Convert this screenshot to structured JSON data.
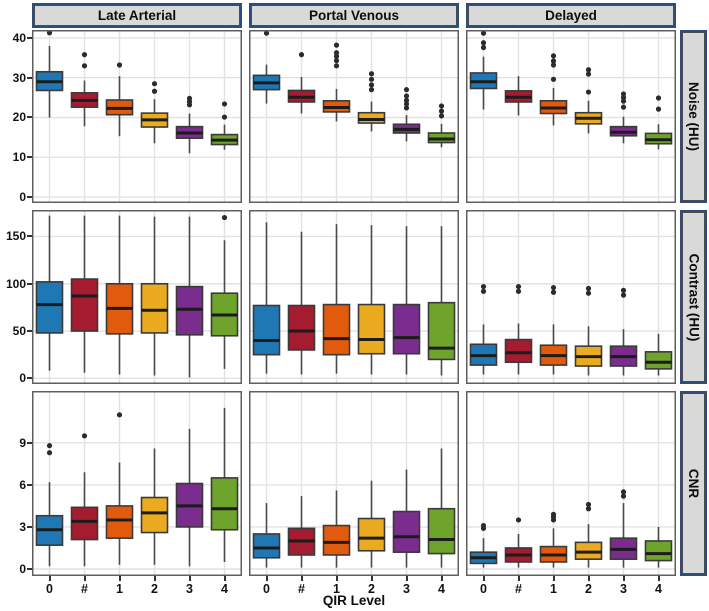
{
  "chart_data": {
    "type": "boxplot",
    "layout": "facet_grid_3x3",
    "title": "",
    "xlabel": "QIR Level",
    "categories": [
      "0",
      "#",
      "1",
      "2",
      "3",
      "4"
    ],
    "legend": "none",
    "grid": "major-only",
    "col_facets": [
      "Late Arterial",
      "Portal Venous",
      "Delayed"
    ],
    "row_facets": [
      {
        "label": "Noise (HU)",
        "ticks": [
          0,
          10,
          20,
          30,
          40
        ],
        "ylim": [
          -1.5,
          42
        ]
      },
      {
        "label": "Contrast (HU)",
        "ticks": [
          0,
          50,
          100,
          150
        ],
        "ylim": [
          -6,
          178
        ]
      },
      {
        "label": "CNR",
        "ticks": [
          0,
          3,
          6,
          9
        ],
        "ylim": [
          -0.5,
          12.7
        ]
      }
    ],
    "palette": [
      "#1F78B4",
      "#A51C30",
      "#E25A0C",
      "#EBAB21",
      "#7A2D8E",
      "#6FA42C"
    ],
    "style": {
      "panel_bg": "#ffffff",
      "grid_color": "#e2e2e2",
      "panel_border": "#5f5f5f",
      "strip_fill": "#d9d9d9",
      "strip_border": "#2e4d7b",
      "whisker": "#4a4a4a",
      "box_stroke": "#3a3a3a",
      "median": "#1c1c1c",
      "outlier": "#2b2b2b",
      "text": "#111111"
    },
    "panels": [
      {
        "row": "Noise (HU)",
        "col": "Late Arterial",
        "boxes": [
          {
            "cat": "0",
            "lo": 20,
            "q1": 26.8,
            "med": 29,
            "q3": 31.5,
            "hi": 38,
            "out": [
              41.3
            ]
          },
          {
            "cat": "#",
            "lo": 17.8,
            "q1": 22.6,
            "med": 24.3,
            "q3": 26.2,
            "hi": 29.3,
            "out": [
              33,
              35.8
            ]
          },
          {
            "cat": "1",
            "lo": 15.3,
            "q1": 20.7,
            "med": 22.3,
            "q3": 24.4,
            "hi": 30.4,
            "out": [
              33.2
            ]
          },
          {
            "cat": "2",
            "lo": 13.5,
            "q1": 17.6,
            "med": 19.4,
            "q3": 21.1,
            "hi": 24.6,
            "out": [
              26.6,
              28.5
            ]
          },
          {
            "cat": "3",
            "lo": 11,
            "q1": 14.8,
            "med": 16.1,
            "q3": 17.7,
            "hi": 21,
            "out": [
              23.2,
              24,
              24.8
            ]
          },
          {
            "cat": "4",
            "lo": 11.9,
            "q1": 13.2,
            "med": 14.3,
            "q3": 15.7,
            "hi": 18.2,
            "out": [
              20.1,
              23.4
            ]
          }
        ]
      },
      {
        "row": "Noise (HU)",
        "col": "Portal Venous",
        "boxes": [
          {
            "cat": "0",
            "lo": 23.5,
            "q1": 27,
            "med": 28.7,
            "q3": 30.6,
            "hi": 33.3,
            "out": [
              41.2
            ]
          },
          {
            "cat": "#",
            "lo": 21,
            "q1": 23.9,
            "med": 25.1,
            "q3": 26.8,
            "hi": 30.2,
            "out": [
              35.8
            ]
          },
          {
            "cat": "1",
            "lo": 19,
            "q1": 21.4,
            "med": 22.5,
            "q3": 24.2,
            "hi": 27.2,
            "out": [
              33,
              34.3,
              35.4,
              36.3,
              38.2
            ]
          },
          {
            "cat": "2",
            "lo": 16.5,
            "q1": 18.6,
            "med": 19.5,
            "q3": 21.2,
            "hi": 24,
            "out": [
              27,
              28.2,
              29.6,
              31
            ]
          },
          {
            "cat": "3",
            "lo": 14,
            "q1": 16.1,
            "med": 17,
            "q3": 18.3,
            "hi": 20.6,
            "out": [
              22.4,
              23.4,
              24.3,
              25.4,
              27
            ]
          },
          {
            "cat": "4",
            "lo": 12.5,
            "q1": 13.7,
            "med": 14.6,
            "q3": 16.1,
            "hi": 18.4,
            "out": [
              20.4,
              21.6,
              22.9
            ]
          }
        ]
      },
      {
        "row": "Noise (HU)",
        "col": "Delayed",
        "boxes": [
          {
            "cat": "0",
            "lo": 22,
            "q1": 27.3,
            "med": 29,
            "q3": 31.2,
            "hi": 35.3,
            "out": [
              37.6,
              38.8,
              41.2
            ]
          },
          {
            "cat": "#",
            "lo": 20.5,
            "q1": 23.9,
            "med": 25.1,
            "q3": 26.7,
            "hi": 30.4,
            "out": []
          },
          {
            "cat": "1",
            "lo": 18,
            "q1": 21,
            "med": 22.4,
            "q3": 24.2,
            "hi": 27.4,
            "out": [
              29.6,
              33.2,
              34.2,
              35.5
            ]
          },
          {
            "cat": "2",
            "lo": 16,
            "q1": 18.4,
            "med": 19.8,
            "q3": 21.2,
            "hi": 24.2,
            "out": [
              26.4,
              30.9,
              32
            ]
          },
          {
            "cat": "3",
            "lo": 13.5,
            "q1": 15.4,
            "med": 16.3,
            "q3": 17.7,
            "hi": 20.2,
            "out": [
              22.6,
              24.1,
              25,
              25.9
            ]
          },
          {
            "cat": "4",
            "lo": 12,
            "q1": 13.4,
            "med": 14.4,
            "q3": 16,
            "hi": 18.3,
            "out": [
              22.1,
              24.9
            ]
          }
        ]
      },
      {
        "row": "Contrast (HU)",
        "col": "Late Arterial",
        "boxes": [
          {
            "cat": "0",
            "lo": 8,
            "q1": 48,
            "med": 78,
            "q3": 102,
            "hi": 172,
            "out": []
          },
          {
            "cat": "#",
            "lo": 6,
            "q1": 50,
            "med": 87,
            "q3": 105,
            "hi": 172,
            "out": []
          },
          {
            "cat": "1",
            "lo": 4,
            "q1": 47,
            "med": 74,
            "q3": 100,
            "hi": 172,
            "out": []
          },
          {
            "cat": "2",
            "lo": 3,
            "q1": 48,
            "med": 72,
            "q3": 100,
            "hi": 171,
            "out": []
          },
          {
            "cat": "3",
            "lo": 1,
            "q1": 46,
            "med": 73,
            "q3": 97,
            "hi": 171,
            "out": []
          },
          {
            "cat": "4",
            "lo": 10,
            "q1": 45,
            "med": 67,
            "q3": 90,
            "hi": 146,
            "out": [
              170
            ]
          }
        ]
      },
      {
        "row": "Contrast (HU)",
        "col": "Portal Venous",
        "boxes": [
          {
            "cat": "0",
            "lo": 5,
            "q1": 25,
            "med": 40,
            "q3": 77,
            "hi": 165,
            "out": []
          },
          {
            "cat": "#",
            "lo": 4,
            "q1": 30,
            "med": 50,
            "q3": 77,
            "hi": 155,
            "out": []
          },
          {
            "cat": "1",
            "lo": 5,
            "q1": 25,
            "med": 42,
            "q3": 78,
            "hi": 163,
            "out": []
          },
          {
            "cat": "2",
            "lo": 4,
            "q1": 26,
            "med": 41,
            "q3": 78,
            "hi": 162,
            "out": []
          },
          {
            "cat": "3",
            "lo": 4,
            "q1": 26,
            "med": 43,
            "q3": 78,
            "hi": 161,
            "out": []
          },
          {
            "cat": "4",
            "lo": 3,
            "q1": 20,
            "med": 32,
            "q3": 80,
            "hi": 161,
            "out": []
          }
        ]
      },
      {
        "row": "Contrast (HU)",
        "col": "Delayed",
        "boxes": [
          {
            "cat": "0",
            "lo": 4,
            "q1": 14,
            "med": 24,
            "q3": 36,
            "hi": 57,
            "out": [
              92,
              97
            ]
          },
          {
            "cat": "#",
            "lo": 4,
            "q1": 17,
            "med": 27,
            "q3": 41,
            "hi": 58,
            "out": [
              92,
              97
            ]
          },
          {
            "cat": "1",
            "lo": 4,
            "q1": 14,
            "med": 24,
            "q3": 35,
            "hi": 57,
            "out": [
              91,
              96
            ]
          },
          {
            "cat": "2",
            "lo": 3,
            "q1": 13,
            "med": 23,
            "q3": 34,
            "hi": 55,
            "out": [
              90,
              95
            ]
          },
          {
            "cat": "3",
            "lo": 3,
            "q1": 13,
            "med": 23,
            "q3": 34,
            "hi": 52,
            "out": [
              88,
              93
            ]
          },
          {
            "cat": "4",
            "lo": 3,
            "q1": 10,
            "med": 17,
            "q3": 28,
            "hi": 47,
            "out": []
          }
        ]
      },
      {
        "row": "CNR",
        "col": "Late Arterial",
        "boxes": [
          {
            "cat": "0",
            "lo": 0.2,
            "q1": 1.7,
            "med": 2.8,
            "q3": 3.8,
            "hi": 6.2,
            "out": [
              8.3,
              8.8
            ]
          },
          {
            "cat": "#",
            "lo": 0.2,
            "q1": 2.1,
            "med": 3.4,
            "q3": 4.4,
            "hi": 6.9,
            "out": [
              9.5
            ]
          },
          {
            "cat": "1",
            "lo": 0.3,
            "q1": 2.2,
            "med": 3.5,
            "q3": 4.5,
            "hi": 7.6,
            "out": [
              11
            ]
          },
          {
            "cat": "2",
            "lo": 0.3,
            "q1": 2.6,
            "med": 4.0,
            "q3": 5.1,
            "hi": 8.6,
            "out": []
          },
          {
            "cat": "3",
            "lo": 0.2,
            "q1": 3.0,
            "med": 4.5,
            "q3": 6.1,
            "hi": 10,
            "out": []
          },
          {
            "cat": "4",
            "lo": 0.5,
            "q1": 2.8,
            "med": 4.3,
            "q3": 6.5,
            "hi": 11.5,
            "out": []
          }
        ]
      },
      {
        "row": "CNR",
        "col": "Portal Venous",
        "boxes": [
          {
            "cat": "0",
            "lo": 0.1,
            "q1": 0.8,
            "med": 1.5,
            "q3": 2.5,
            "hi": 4.7,
            "out": []
          },
          {
            "cat": "#",
            "lo": 0.1,
            "q1": 1.0,
            "med": 2.0,
            "q3": 2.9,
            "hi": 5.2,
            "out": []
          },
          {
            "cat": "1",
            "lo": 0.1,
            "q1": 1.0,
            "med": 1.9,
            "q3": 3.1,
            "hi": 5.6,
            "out": []
          },
          {
            "cat": "2",
            "lo": 0.1,
            "q1": 1.3,
            "med": 2.2,
            "q3": 3.6,
            "hi": 6.3,
            "out": []
          },
          {
            "cat": "3",
            "lo": 0.1,
            "q1": 1.2,
            "med": 2.3,
            "q3": 4.1,
            "hi": 7.1,
            "out": []
          },
          {
            "cat": "4",
            "lo": 0.1,
            "q1": 1.1,
            "med": 2.1,
            "q3": 4.3,
            "hi": 8.6,
            "out": []
          }
        ]
      },
      {
        "row": "CNR",
        "col": "Delayed",
        "boxes": [
          {
            "cat": "0",
            "lo": 0.1,
            "q1": 0.4,
            "med": 0.8,
            "q3": 1.2,
            "hi": 2.2,
            "out": [
              2.9,
              3.1
            ]
          },
          {
            "cat": "#",
            "lo": 0.1,
            "q1": 0.5,
            "med": 1.0,
            "q3": 1.5,
            "hi": 2.5,
            "out": [
              3.5
            ]
          },
          {
            "cat": "1",
            "lo": 0.1,
            "q1": 0.5,
            "med": 1.0,
            "q3": 1.6,
            "hi": 2.9,
            "out": [
              3.5,
              3.7,
              3.9
            ]
          },
          {
            "cat": "2",
            "lo": 0.1,
            "q1": 0.7,
            "med": 1.2,
            "q3": 1.9,
            "hi": 3.2,
            "out": [
              4.3,
              4.6
            ]
          },
          {
            "cat": "3",
            "lo": 0.1,
            "q1": 0.7,
            "med": 1.4,
            "q3": 2.2,
            "hi": 4.7,
            "out": [
              5.2,
              5.5
            ]
          },
          {
            "cat": "4",
            "lo": 0.1,
            "q1": 0.6,
            "med": 1.1,
            "q3": 2.0,
            "hi": 3.0,
            "out": []
          }
        ]
      }
    ]
  }
}
